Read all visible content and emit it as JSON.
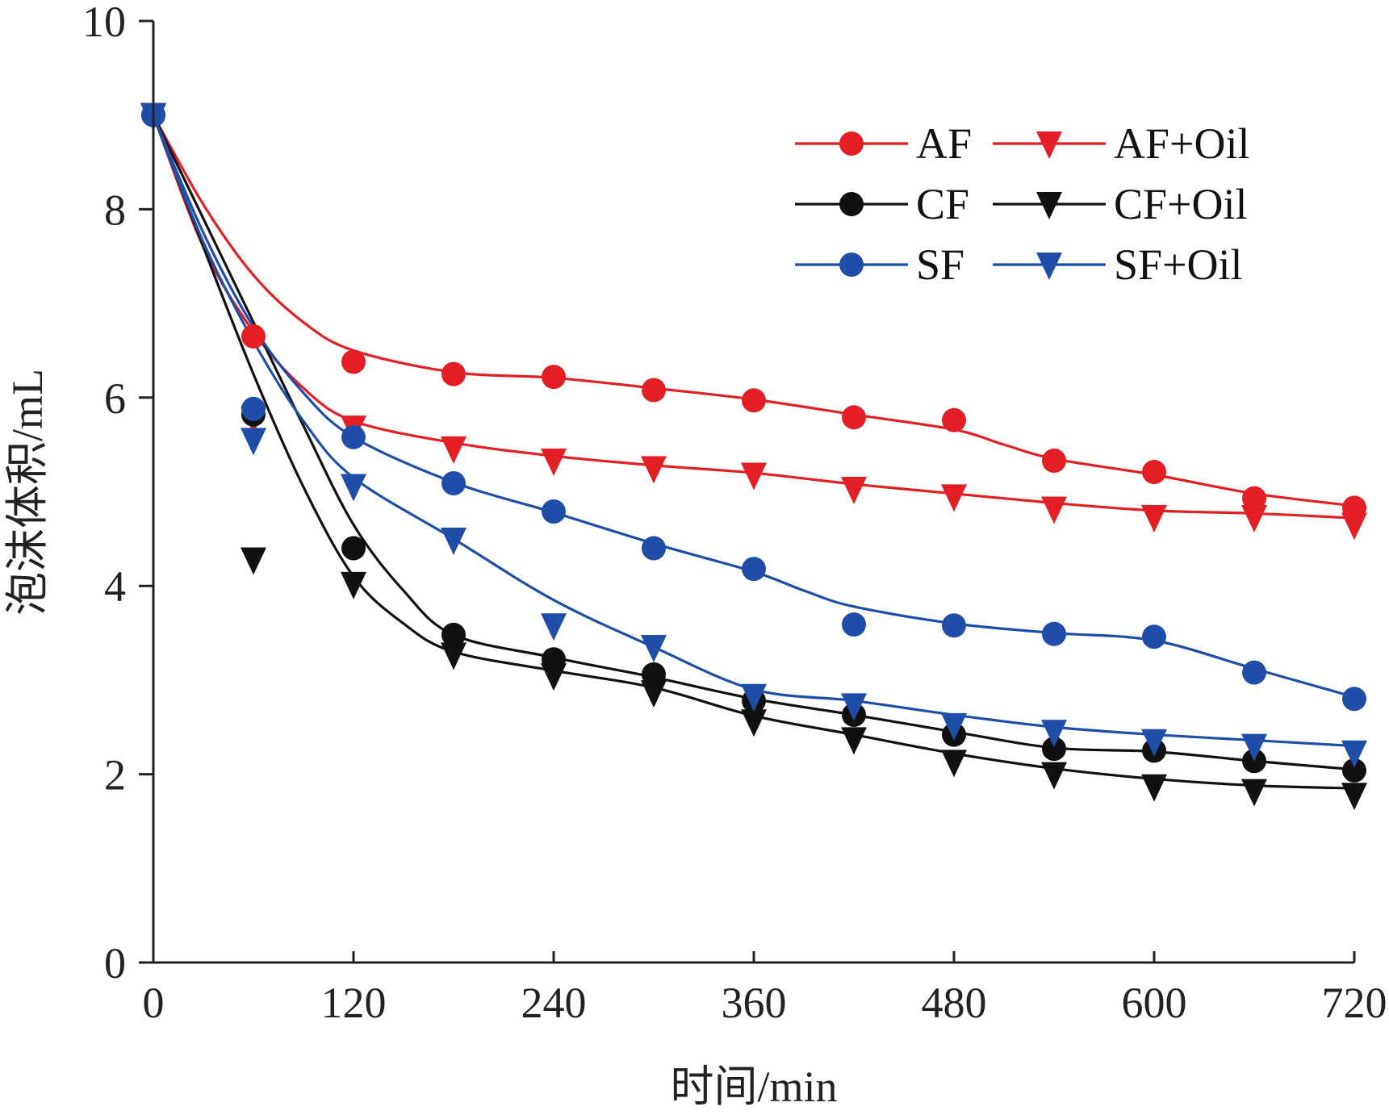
{
  "chart_data": {
    "type": "line",
    "xlabel": "时间/min",
    "ylabel": "泡沫体积/mL",
    "xlim": [
      0,
      720
    ],
    "ylim": [
      0,
      10
    ],
    "xticks": [
      0,
      120,
      240,
      360,
      480,
      600,
      720
    ],
    "yticks": [
      0,
      2,
      4,
      6,
      8,
      10
    ],
    "grid": false,
    "legend_position": "top-right",
    "x": [
      0,
      60,
      120,
      180,
      240,
      300,
      360,
      420,
      480,
      540,
      600,
      660,
      720
    ],
    "series": [
      {
        "name": "AF",
        "marker": "circle",
        "color": "#e31e24",
        "values": [
          9.0,
          6.65,
          6.38,
          6.25,
          6.22,
          6.08,
          5.97,
          5.79,
          5.76,
          5.33,
          5.21,
          4.93,
          4.83
        ]
      },
      {
        "name": "AF+Oil",
        "marker": "triangle-down",
        "color": "#e31e24",
        "values": [
          9.0,
          5.78,
          5.68,
          5.46,
          5.33,
          5.25,
          5.18,
          5.03,
          4.95,
          4.82,
          4.73,
          4.73,
          4.65
        ]
      },
      {
        "name": "CF",
        "marker": "circle",
        "color": "#111111",
        "values": [
          9.0,
          5.82,
          4.4,
          3.48,
          3.22,
          3.06,
          2.78,
          2.63,
          2.42,
          2.27,
          2.25,
          2.14,
          2.04
        ]
      },
      {
        "name": "CF+Oil",
        "marker": "triangle-down",
        "color": "#111111",
        "values": [
          9.0,
          4.28,
          4.02,
          3.27,
          3.05,
          2.87,
          2.56,
          2.37,
          2.13,
          2.0,
          1.87,
          1.82,
          1.78
        ]
      },
      {
        "name": "SF",
        "marker": "circle",
        "color": "#1f4ea8",
        "values": [
          9.0,
          5.88,
          5.58,
          5.09,
          4.79,
          4.4,
          4.18,
          3.59,
          3.58,
          3.49,
          3.46,
          3.08,
          2.8
        ]
      },
      {
        "name": "SF+Oil",
        "marker": "triangle-down",
        "color": "#1f4ea8",
        "values": [
          9.0,
          5.55,
          5.06,
          4.49,
          3.58,
          3.35,
          2.83,
          2.73,
          2.52,
          2.45,
          2.35,
          2.3,
          2.23
        ]
      }
    ],
    "fits": [
      {
        "series": "AF",
        "x": [
          0,
          30,
          60,
          90,
          120,
          180,
          240,
          300,
          360,
          420,
          480,
          510,
          540,
          600,
          660,
          720
        ],
        "y": [
          9.0,
          8.05,
          7.3,
          6.8,
          6.5,
          6.27,
          6.21,
          6.1,
          5.98,
          5.82,
          5.66,
          5.5,
          5.35,
          5.18,
          4.98,
          4.85
        ]
      },
      {
        "series": "AF+Oil",
        "x": [
          0,
          30,
          60,
          90,
          120,
          180,
          240,
          300,
          360,
          420,
          480,
          540,
          600,
          660,
          720
        ],
        "y": [
          9.0,
          7.6,
          6.7,
          6.1,
          5.75,
          5.52,
          5.38,
          5.28,
          5.2,
          5.08,
          4.98,
          4.88,
          4.8,
          4.77,
          4.72
        ]
      },
      {
        "series": "CF",
        "x": [
          0,
          30,
          60,
          90,
          120,
          150,
          180,
          240,
          300,
          360,
          420,
          480,
          540,
          600,
          660,
          720
        ],
        "y": [
          9.0,
          7.9,
          6.8,
          5.7,
          4.65,
          3.95,
          3.48,
          3.24,
          3.03,
          2.8,
          2.63,
          2.45,
          2.28,
          2.24,
          2.14,
          2.05
        ]
      },
      {
        "series": "CF+Oil",
        "x": [
          0,
          30,
          60,
          90,
          120,
          150,
          180,
          240,
          300,
          360,
          420,
          480,
          540,
          600,
          660,
          720
        ],
        "y": [
          9.0,
          7.6,
          6.25,
          5.05,
          4.1,
          3.6,
          3.3,
          3.1,
          2.92,
          2.62,
          2.42,
          2.22,
          2.06,
          1.95,
          1.88,
          1.85
        ]
      },
      {
        "series": "SF",
        "x": [
          0,
          30,
          60,
          90,
          120,
          180,
          240,
          300,
          360,
          390,
          420,
          480,
          540,
          600,
          660,
          720
        ],
        "y": [
          9.0,
          7.75,
          6.75,
          6.05,
          5.58,
          5.1,
          4.78,
          4.45,
          4.15,
          3.95,
          3.78,
          3.6,
          3.5,
          3.42,
          3.12,
          2.82
        ]
      },
      {
        "series": "SF+Oil",
        "x": [
          0,
          30,
          60,
          90,
          120,
          180,
          240,
          300,
          360,
          420,
          480,
          540,
          600,
          660,
          720
        ],
        "y": [
          9.0,
          7.65,
          6.6,
          5.75,
          5.15,
          4.5,
          3.85,
          3.35,
          2.9,
          2.78,
          2.63,
          2.5,
          2.42,
          2.36,
          2.3
        ]
      }
    ]
  }
}
